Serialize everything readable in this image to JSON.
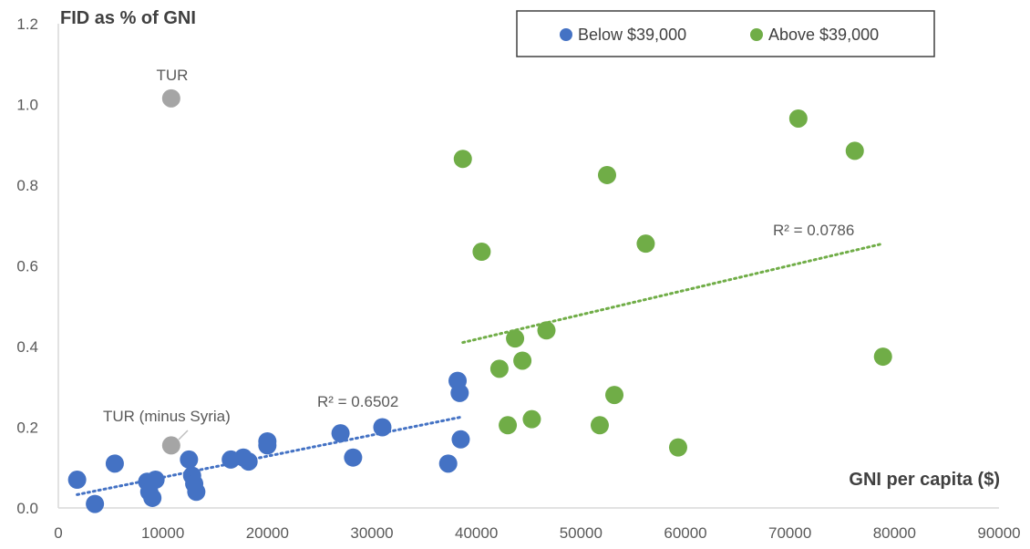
{
  "chart_data": {
    "type": "scatter",
    "ylabel": "FID as % of GNI",
    "xlabel": "GNI per capita ($)",
    "xlim": [
      0,
      90000
    ],
    "ylim": [
      0,
      1.2
    ],
    "x_ticks": [
      "0",
      "10000",
      "20000",
      "30000",
      "40000",
      "50000",
      "60000",
      "70000",
      "80000",
      "90000"
    ],
    "y_ticks": [
      "0.0",
      "0.2",
      "0.4",
      "0.6",
      "0.8",
      "1.0",
      "1.2"
    ],
    "grid": false,
    "legend_position": "top-right",
    "series": [
      {
        "name": "Below $39,000",
        "color": "#4472C4",
        "points": [
          [
            1800,
            0.07
          ],
          [
            3500,
            0.01
          ],
          [
            5400,
            0.11
          ],
          [
            8500,
            0.065
          ],
          [
            8700,
            0.04
          ],
          [
            9000,
            0.025
          ],
          [
            9300,
            0.07
          ],
          [
            12500,
            0.12
          ],
          [
            12800,
            0.08
          ],
          [
            13000,
            0.06
          ],
          [
            13200,
            0.04
          ],
          [
            16500,
            0.12
          ],
          [
            17700,
            0.125
          ],
          [
            18200,
            0.115
          ],
          [
            20000,
            0.165
          ],
          [
            20000,
            0.155
          ],
          [
            27000,
            0.185
          ],
          [
            28200,
            0.125
          ],
          [
            31000,
            0.2
          ],
          [
            37300,
            0.11
          ],
          [
            38200,
            0.315
          ],
          [
            38400,
            0.285
          ],
          [
            38500,
            0.17
          ]
        ],
        "trendline": {
          "x": [
            1800,
            38500
          ],
          "y": [
            0.033,
            0.225
          ],
          "label": "R² = 0.6502"
        }
      },
      {
        "name": "Above $39,000",
        "color": "#70AD47",
        "points": [
          [
            38700,
            0.865
          ],
          [
            40500,
            0.635
          ],
          [
            42200,
            0.345
          ],
          [
            43000,
            0.205
          ],
          [
            43700,
            0.42
          ],
          [
            44400,
            0.365
          ],
          [
            45300,
            0.22
          ],
          [
            46700,
            0.44
          ],
          [
            51800,
            0.205
          ],
          [
            52500,
            0.825
          ],
          [
            53200,
            0.28
          ],
          [
            56200,
            0.655
          ],
          [
            59300,
            0.15
          ],
          [
            70800,
            0.965
          ],
          [
            76200,
            0.885
          ],
          [
            78900,
            0.375
          ]
        ],
        "trendline": {
          "x": [
            38700,
            78900
          ],
          "y": [
            0.41,
            0.655
          ],
          "label": "R² = 0.0786"
        }
      },
      {
        "color": "#A5A5A5",
        "points": [
          [
            10800,
            1.015
          ],
          [
            10800,
            0.155
          ]
        ],
        "labels": [
          "TUR",
          "TUR (minus Syria)"
        ]
      }
    ]
  }
}
